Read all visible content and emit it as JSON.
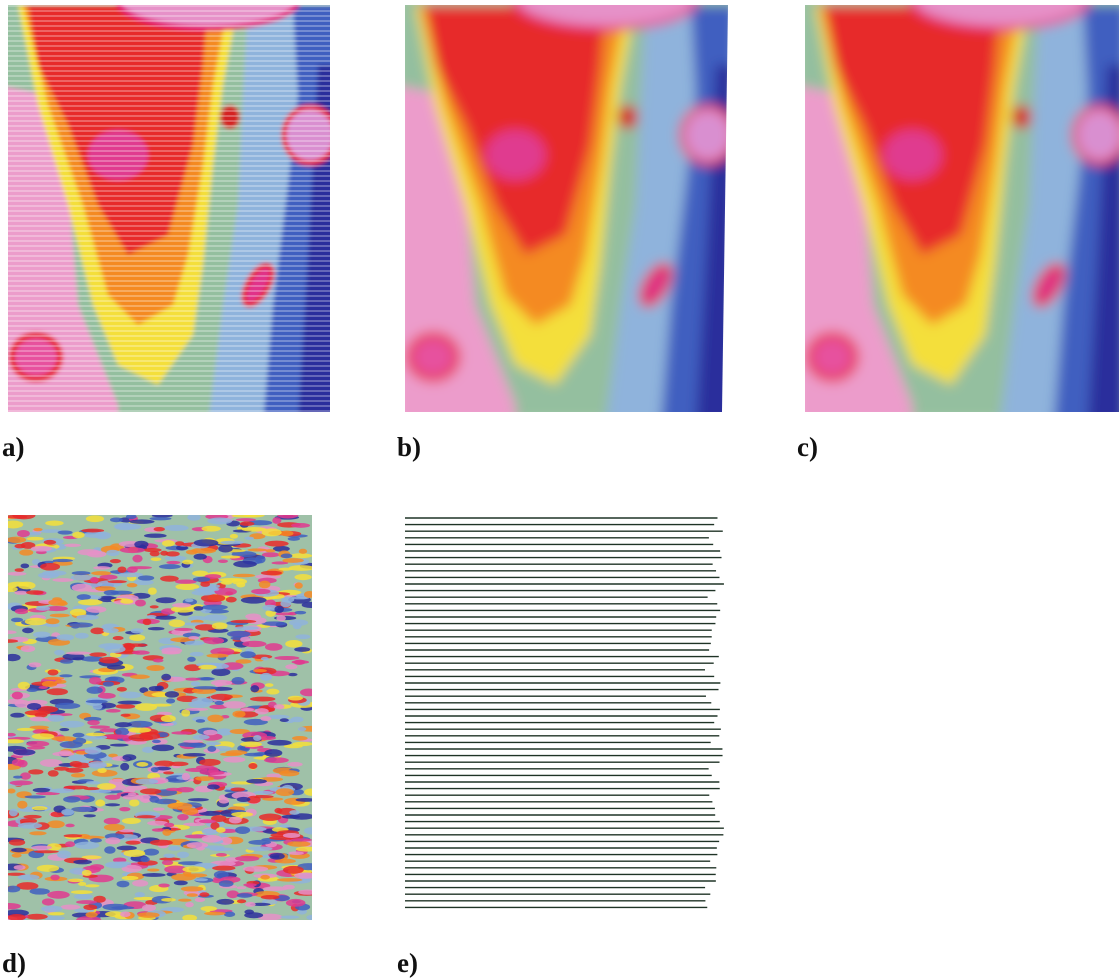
{
  "panels": [
    {
      "label": "a)"
    },
    {
      "label": "b)"
    },
    {
      "label": "c)"
    },
    {
      "label": "d)"
    },
    {
      "label": "e)"
    }
  ]
}
